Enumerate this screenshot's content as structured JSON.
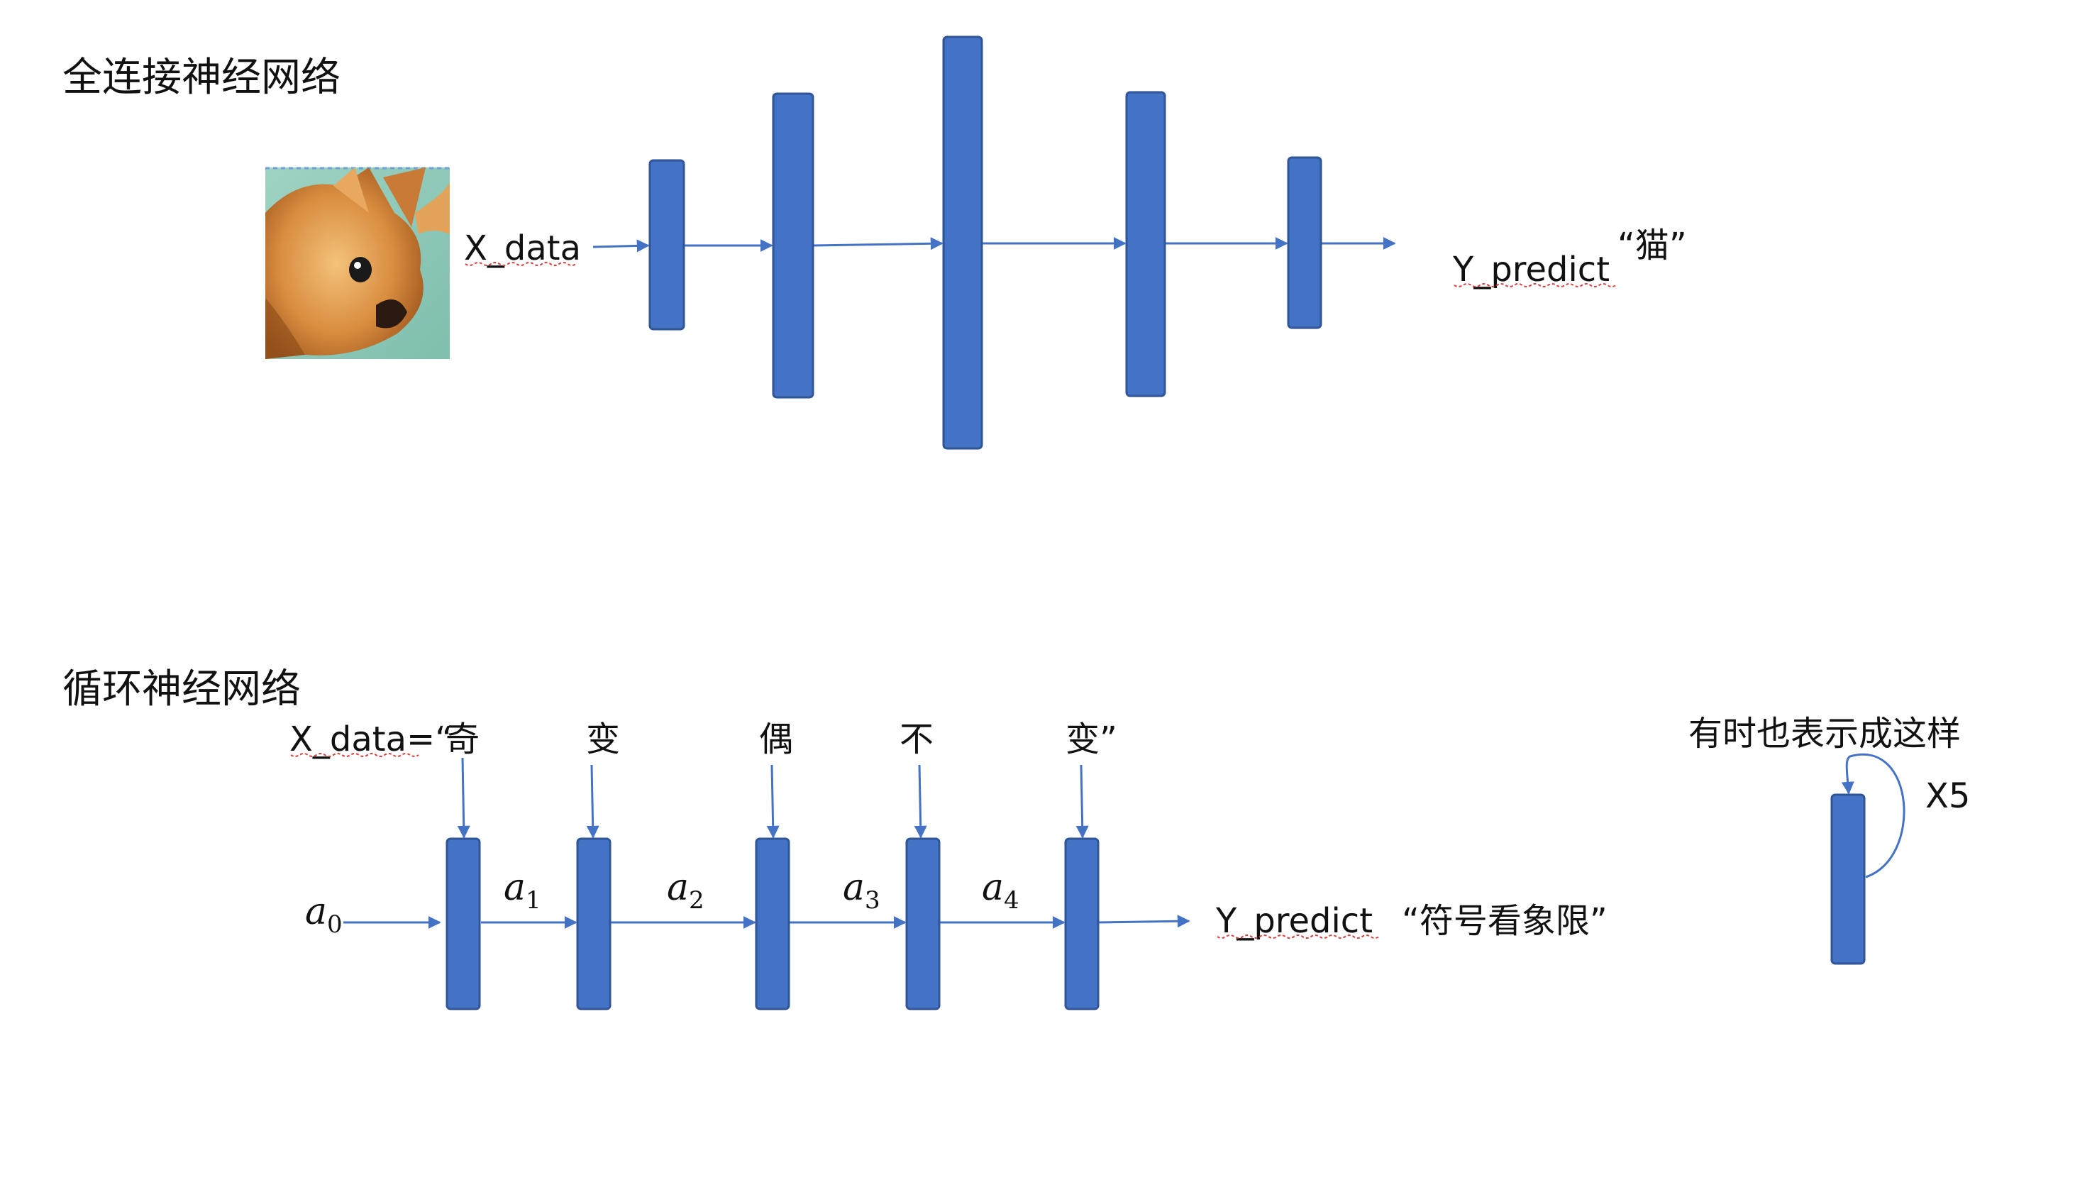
{
  "colors": {
    "bar_fill": "#4472c4",
    "arrow": "#4472c4",
    "spellcheck_underline": "#d94040"
  },
  "fc": {
    "title": "全连接神经网络",
    "input_label": "X_data",
    "output_label": "Y_predict",
    "output_value": "“猫”",
    "layer_count": 5,
    "input_image": "cat-photo"
  },
  "rnn": {
    "title": "循环神经网络",
    "input_prefix": "X_data=“",
    "inputs": [
      "奇",
      "变",
      "偶",
      "不",
      "变”"
    ],
    "initial_state": {
      "base": "a",
      "sub": "0"
    },
    "states": [
      {
        "base": "a",
        "sub": "1"
      },
      {
        "base": "a",
        "sub": "2"
      },
      {
        "base": "a",
        "sub": "3"
      },
      {
        "base": "a",
        "sub": "4"
      }
    ],
    "output_label": "Y_predict",
    "output_value": "“符号看象限”",
    "cells": 5
  },
  "compact": {
    "caption": "有时也表示成这样",
    "repeat": "X5"
  }
}
